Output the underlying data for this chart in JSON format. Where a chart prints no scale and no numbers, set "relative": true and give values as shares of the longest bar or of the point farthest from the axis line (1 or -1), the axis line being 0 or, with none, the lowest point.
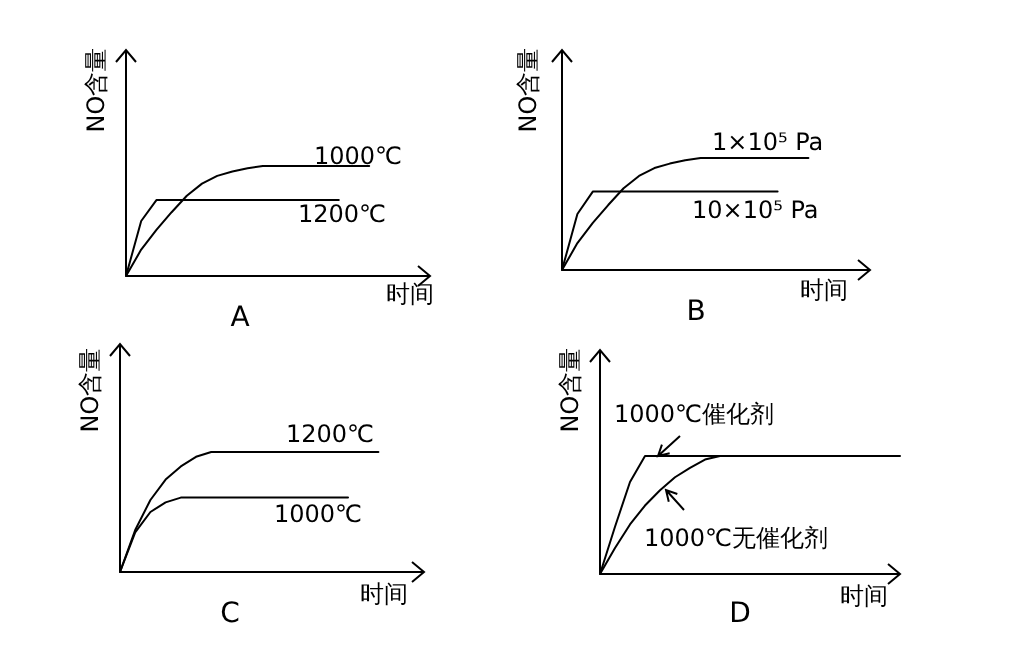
{
  "chart_data": [
    {
      "type": "line",
      "title": "A",
      "xlabel": "时间",
      "ylabel": "NO含量",
      "relative": true,
      "categories": [
        null,
        null,
        null,
        null,
        null,
        null,
        null,
        null,
        null,
        null,
        null,
        null,
        null,
        null,
        null,
        null,
        null,
        null,
        null,
        null,
        null
      ],
      "series": [
        {
          "name": "1000℃",
          "color": "#000000",
          "values": [
            0,
            0.24,
            0.42,
            0.58,
            0.73,
            0.84,
            0.91,
            0.95,
            0.98,
            1,
            1,
            1,
            1,
            1,
            1,
            1,
            1,
            null,
            null,
            null,
            null
          ]
        },
        {
          "name": "1200℃",
          "color": "#000000",
          "values": [
            0,
            0.5,
            0.69,
            0.69,
            0.69,
            0.69,
            0.69,
            0.69,
            0.69,
            0.69,
            0.69,
            0.69,
            0.69,
            0.69,
            0.69,
            null,
            null,
            null,
            null,
            null,
            null
          ]
        }
      ]
    },
    {
      "type": "line",
      "title": "B",
      "xlabel": "时间",
      "ylabel": "NO含量",
      "relative": true,
      "categories": [
        null,
        null,
        null,
        null,
        null,
        null,
        null,
        null,
        null,
        null,
        null,
        null,
        null,
        null,
        null,
        null,
        null,
        null,
        null,
        null,
        null
      ],
      "series": [
        {
          "name": "1×10⁵ Pa",
          "color": "#000000",
          "values": [
            0,
            0.24,
            0.42,
            0.58,
            0.73,
            0.84,
            0.91,
            0.95,
            0.98,
            1,
            1,
            1,
            1,
            1,
            1,
            1,
            1,
            null,
            null,
            null,
            null
          ]
        },
        {
          "name": "10×10⁵ Pa",
          "color": "#000000",
          "values": [
            0,
            0.5,
            0.7,
            0.7,
            0.7,
            0.7,
            0.7,
            0.7,
            0.7,
            0.7,
            0.7,
            0.7,
            0.7,
            0.7,
            0.7,
            null,
            null,
            null,
            null,
            null,
            null
          ]
        }
      ]
    },
    {
      "type": "line",
      "title": "C",
      "xlabel": "时间",
      "ylabel": "NO含量",
      "relative": true,
      "categories": [
        null,
        null,
        null,
        null,
        null,
        null,
        null,
        null,
        null,
        null,
        null,
        null,
        null,
        null,
        null,
        null,
        null,
        null,
        null,
        null,
        null
      ],
      "series": [
        {
          "name": "1200℃",
          "color": "#000000",
          "values": [
            0,
            0.35,
            0.6,
            0.77,
            0.88,
            0.96,
            1,
            1,
            1,
            1,
            1,
            1,
            1,
            1,
            1,
            1,
            1,
            1,
            null,
            null,
            null
          ]
        },
        {
          "name": "1000℃",
          "color": "#000000",
          "values": [
            0,
            0.33,
            0.5,
            0.58,
            0.62,
            0.62,
            0.62,
            0.62,
            0.62,
            0.62,
            0.62,
            0.62,
            0.62,
            0.62,
            0.62,
            0.62,
            null,
            null,
            null,
            null,
            null
          ]
        }
      ]
    },
    {
      "type": "line",
      "title": "D",
      "xlabel": "时间",
      "ylabel": "NO含量",
      "relative": true,
      "categories": [
        null,
        null,
        null,
        null,
        null,
        null,
        null,
        null,
        null,
        null,
        null,
        null,
        null,
        null,
        null,
        null,
        null,
        null,
        null,
        null,
        null
      ],
      "series": [
        {
          "name": "1000℃催化剂",
          "color": "#000000",
          "values": [
            0,
            0.4,
            0.78,
            1,
            1,
            1,
            1,
            1,
            1,
            1,
            1,
            1,
            1,
            1,
            1,
            1,
            1,
            1,
            1,
            1,
            1
          ]
        },
        {
          "name": "1000℃无催化剂",
          "color": "#000000",
          "values": [
            0,
            0.22,
            0.42,
            0.58,
            0.71,
            0.82,
            0.9,
            0.97,
            1,
            null,
            null,
            null,
            null,
            null,
            null,
            null,
            null,
            null,
            null,
            null,
            null
          ]
        }
      ]
    }
  ]
}
